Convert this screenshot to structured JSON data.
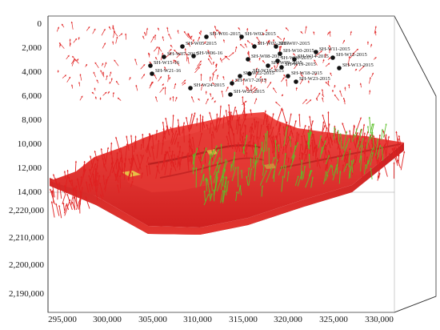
{
  "scene": {
    "colors": {
      "background": "#ffffff",
      "frame": "#333333",
      "grid": "#bbbbbb",
      "reservoir_fill": "#d8262a",
      "reservoir_dark": "#a8161a",
      "reservoir_light": "#ee4a46",
      "vector_red": "#e02020",
      "vector_green": "#5cbf2a",
      "vector_yellow": "#e8d84a",
      "well_marker": "#111111"
    },
    "depth_axis": {
      "ticks": [
        "0",
        "2,000",
        "4,000",
        "6,000",
        "8,000",
        "10,000",
        "12,000",
        "14,000"
      ]
    },
    "northing_axis": {
      "ticks": [
        "2,220,000",
        "2,210,000",
        "2,200,000",
        "2,190,000"
      ]
    },
    "easting_axis": {
      "ticks": [
        "295,000",
        "300,000",
        "305,000",
        "310,000",
        "315,000",
        "320,000",
        "325,000",
        "330,000"
      ]
    },
    "wells": [
      {
        "label": "SH-W01-2015"
      },
      {
        "label": "SH-W02-2015"
      },
      {
        "label": "SH-W0?-2015"
      },
      {
        "label": "SH-W0?-2015"
      },
      {
        "label": "SH-W05-2015"
      },
      {
        "label": "SH-W06-16"
      },
      {
        "label": "SH-W07-2015"
      },
      {
        "label": "SH-W08-2015"
      },
      {
        "label": "SH-W09-2015"
      },
      {
        "label": "SH-W10-2015"
      },
      {
        "label": "SH-W11-2015"
      },
      {
        "label": "SH-W12-2015"
      },
      {
        "label": "SH-W13-2015"
      },
      {
        "label": "SH-W14-2015"
      },
      {
        "label": "SH-W15-16"
      },
      {
        "label": "SH-W16-2015"
      },
      {
        "label": "SH-W17-2015"
      },
      {
        "label": "SH-W18-2015"
      },
      {
        "label": "SH-W19-2015"
      },
      {
        "label": "SH-W20-2015"
      },
      {
        "label": "SH-W21-16"
      },
      {
        "label": "SH-W22-2015"
      },
      {
        "label": "SH-W23-2015"
      },
      {
        "label": "SH-W24-2015"
      },
      {
        "label": "SH-W25-2015"
      }
    ]
  }
}
